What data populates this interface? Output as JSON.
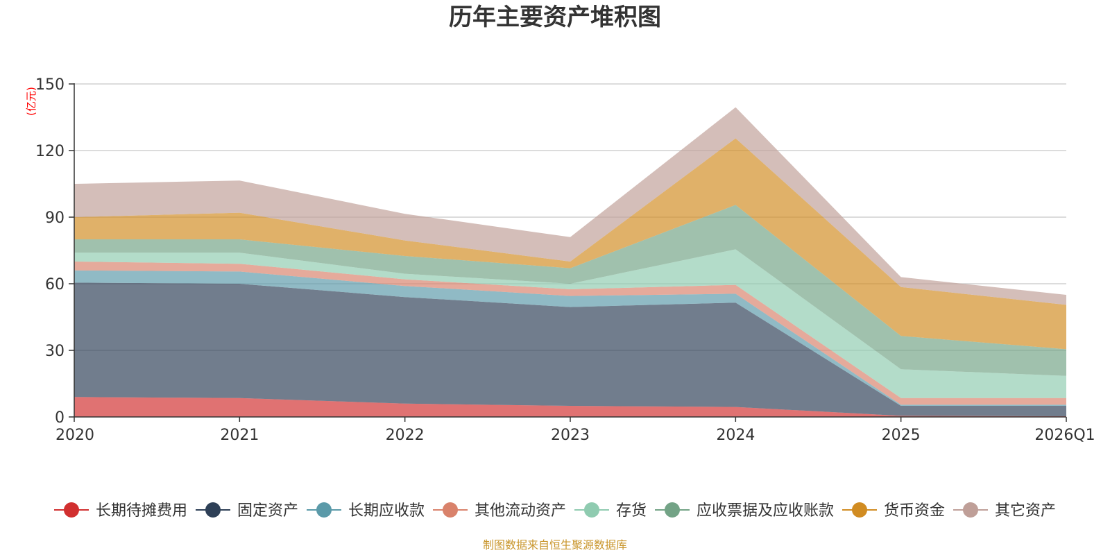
{
  "chart_data": {
    "type": "area",
    "stacked": true,
    "title": "历年主要资产堆积图",
    "unit_label": "(亿元)",
    "source_text": "制图数据来自恒生聚源数据库",
    "categories": [
      "2020",
      "2021",
      "2022",
      "2023",
      "2024",
      "2025",
      "2026Q1"
    ],
    "ylim": [
      0,
      150
    ],
    "yticks": [
      0,
      30,
      60,
      90,
      120,
      150
    ],
    "grid": true,
    "legend_position": "bottom",
    "series": [
      {
        "name": "长期待摊费用",
        "color": "#d12f2f",
        "values": [
          9,
          8.5,
          6,
          5,
          4.5,
          0.5,
          0.3
        ]
      },
      {
        "name": "固定资产",
        "color": "#2e4057",
        "values": [
          51.5,
          51.5,
          48,
          44.5,
          47,
          4.5,
          4.7
        ]
      },
      {
        "name": "长期应收款",
        "color": "#5b9aa9",
        "values": [
          5.5,
          5.5,
          5,
          5,
          4,
          0.5,
          0.5
        ]
      },
      {
        "name": "其他流动资产",
        "color": "#d9826b",
        "values": [
          4,
          3.5,
          3,
          3,
          4,
          3,
          3
        ]
      },
      {
        "name": "存货",
        "color": "#8fcbb0",
        "values": [
          4,
          5,
          2.5,
          2.5,
          16,
          13,
          10
        ]
      },
      {
        "name": "应收票据及应收账款",
        "color": "#73a386",
        "values": [
          6,
          6,
          8,
          7,
          20,
          15,
          12
        ]
      },
      {
        "name": "货币资金",
        "color": "#d18c22",
        "values": [
          10,
          12,
          7,
          3,
          30,
          22,
          20
        ]
      },
      {
        "name": "其它资产",
        "color": "#bf9f98",
        "values": [
          15,
          14.5,
          12,
          11,
          14,
          4.5,
          4.5
        ]
      }
    ]
  }
}
